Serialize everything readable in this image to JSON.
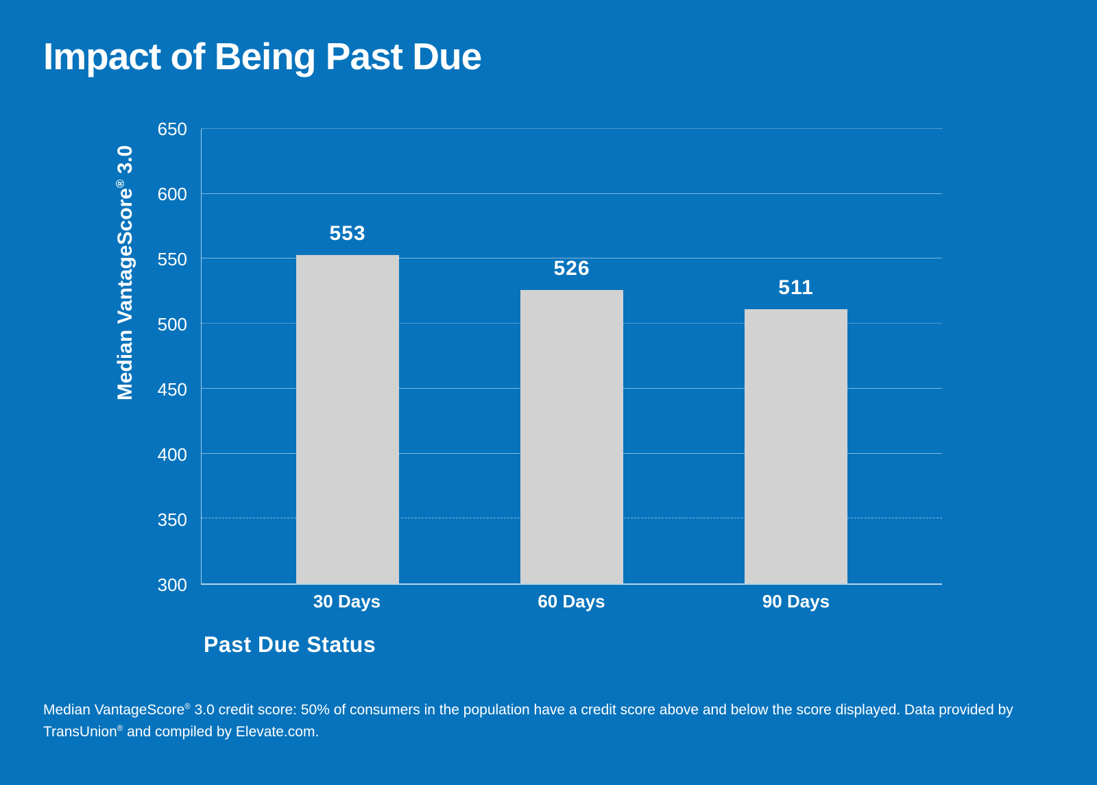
{
  "title": "Impact of Being Past Due",
  "colors": {
    "background": "#0773bc",
    "bar": "#d2d2d2",
    "text": "#ffffff"
  },
  "chart_data": {
    "type": "bar",
    "title": "Impact of Being Past Due",
    "categories": [
      "30 Days",
      "60 Days",
      "90 Days"
    ],
    "values": [
      553,
      526,
      511
    ],
    "xlabel": "Past Due Status",
    "ylabel": "Median VantageScore® 3.0",
    "ylim": [
      300,
      650
    ],
    "yticks": [
      300,
      350,
      400,
      450,
      500,
      550,
      600,
      650
    ],
    "grid": true,
    "legend": "none",
    "bar_color": "#d2d2d2",
    "background_color": "#0773bc",
    "gridlines": [
      {
        "value": 650,
        "style": "dotted"
      },
      {
        "value": 600,
        "style": "solid"
      },
      {
        "value": 550,
        "style": "solid"
      },
      {
        "value": 500,
        "style": "dotted"
      },
      {
        "value": 450,
        "style": "solid"
      },
      {
        "value": 400,
        "style": "solid"
      },
      {
        "value": 350,
        "style": "dashed"
      }
    ]
  },
  "footer": {
    "line1": "Median VantageScore® 3.0 credit score: 50% of consumers in the population have a credit score above and below the score displayed. Data provided by",
    "line2": "TransUnion® and compiled by Elevate.com."
  }
}
